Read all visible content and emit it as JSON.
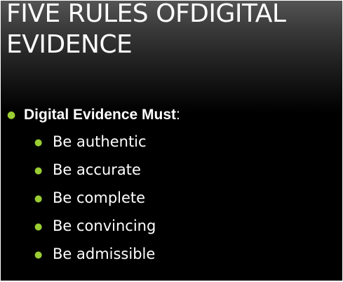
{
  "slide": {
    "title": "FIVE RULES OFDIGITAL EVIDENCE",
    "main_bullet": {
      "label": "Digital Evidence Must",
      "suffix": ":"
    },
    "sub_bullets": [
      {
        "text": "Be authentic"
      },
      {
        "text": "Be accurate"
      },
      {
        "text": "Be complete"
      },
      {
        "text": "Be convincing"
      },
      {
        "text": "Be admissible"
      }
    ]
  },
  "colors": {
    "bullet": "#9acd32",
    "text": "#ffffff",
    "background": "#000000"
  }
}
